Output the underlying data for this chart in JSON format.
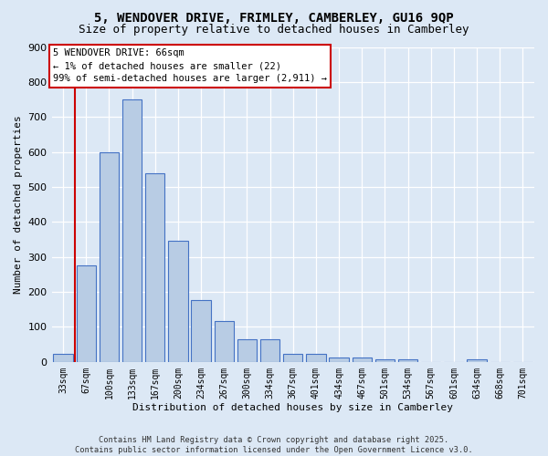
{
  "title_line1": "5, WENDOVER DRIVE, FRIMLEY, CAMBERLEY, GU16 9QP",
  "title_line2": "Size of property relative to detached houses in Camberley",
  "xlabel": "Distribution of detached houses by size in Camberley",
  "ylabel": "Number of detached properties",
  "categories": [
    "33sqm",
    "67sqm",
    "100sqm",
    "133sqm",
    "167sqm",
    "200sqm",
    "234sqm",
    "267sqm",
    "300sqm",
    "334sqm",
    "367sqm",
    "401sqm",
    "434sqm",
    "467sqm",
    "501sqm",
    "534sqm",
    "567sqm",
    "601sqm",
    "634sqm",
    "668sqm",
    "701sqm"
  ],
  "values": [
    22,
    275,
    600,
    750,
    540,
    345,
    178,
    118,
    65,
    65,
    22,
    22,
    12,
    12,
    8,
    8,
    0,
    0,
    8,
    0,
    0
  ],
  "bar_color": "#b8cce4",
  "bar_edge_color": "#4472c4",
  "red_color": "#cc0000",
  "annotation_line1": "5 WENDOVER DRIVE: 66sqm",
  "annotation_line2": "← 1% of detached houses are smaller (22)",
  "annotation_line3": "99% of semi-detached houses are larger (2,911) →",
  "ylim": [
    0,
    900
  ],
  "yticks": [
    0,
    100,
    200,
    300,
    400,
    500,
    600,
    700,
    800,
    900
  ],
  "bg_color": "#dce8f5",
  "footer_line1": "Contains HM Land Registry data © Crown copyright and database right 2025.",
  "footer_line2": "Contains public sector information licensed under the Open Government Licence v3.0."
}
